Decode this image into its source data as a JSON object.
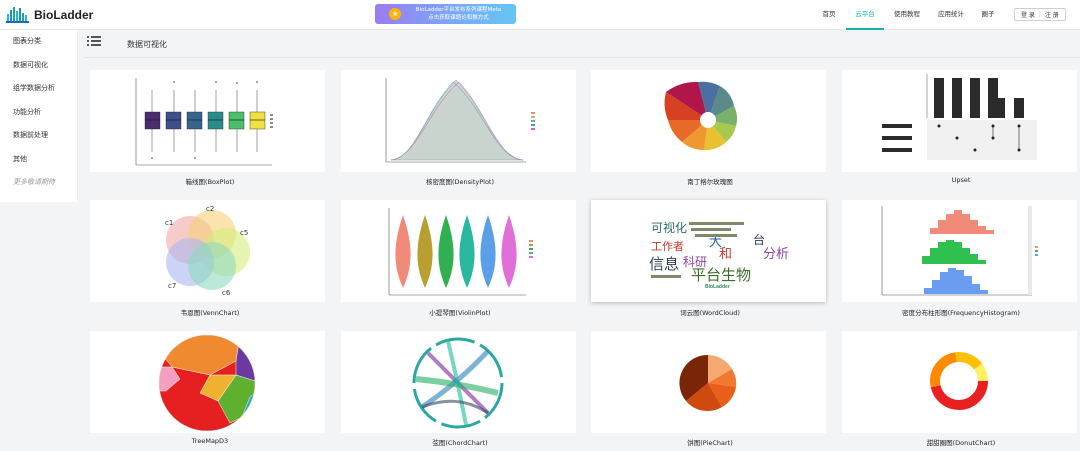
{
  "header": {
    "logo_text": "BioLadder",
    "banner": {
      "line1": "BioLadder平台发布系列课程Meta",
      "line2": "点击获取课题论和推方式"
    },
    "nav": [
      {
        "label": "首页",
        "active": false
      },
      {
        "label": "云平台",
        "active": true
      },
      {
        "label": "使用教程",
        "active": false
      },
      {
        "label": "应用统计",
        "active": false
      },
      {
        "label": "圈子",
        "active": false
      }
    ],
    "login": "登 录",
    "register": "注 册",
    "accent": "#0fb3b0"
  },
  "sidebar": {
    "items": [
      {
        "label": "图表分类"
      },
      {
        "label": "数据可视化"
      },
      {
        "label": "组学数据分析"
      },
      {
        "label": "功能分析"
      },
      {
        "label": "数据前处理"
      },
      {
        "label": "其他"
      },
      {
        "label": "更多敬请期待"
      }
    ]
  },
  "main": {
    "title": "数据可视化",
    "cards": [
      {
        "caption": "箱线图(BoxPlot)",
        "thumb": "boxplot"
      },
      {
        "caption": "核密度图(DensityPlot)",
        "thumb": "density"
      },
      {
        "caption": "南丁格尔玫瑰图",
        "thumb": "rose"
      },
      {
        "caption": "Upset",
        "thumb": "upset"
      },
      {
        "caption": "韦恩图(VennChart)",
        "thumb": "venn",
        "labels": [
          "c1",
          "c2",
          "c5",
          "c7",
          "c6"
        ]
      },
      {
        "caption": "小提琴图(ViolinPlot)",
        "thumb": "violin"
      },
      {
        "caption": "词云图(WordCloud)",
        "thumb": "wordcloud",
        "words": [
          "可视化",
          "工作者",
          "信息",
          "科研",
          "平台生物",
          "分析",
          "和",
          "台",
          "大",
          "BioLadder"
        ]
      },
      {
        "caption": "密度分布柱形图(FrequencyHistogram)",
        "thumb": "histogram"
      },
      {
        "caption": "TreeMapD3",
        "thumb": "treemap"
      },
      {
        "caption": "弦图(ChordChart)",
        "thumb": "chord"
      },
      {
        "caption": "饼图(PieChart)",
        "thumb": "pie"
      },
      {
        "caption": "甜甜圈图(DonutChart)",
        "thumb": "donut"
      }
    ]
  }
}
